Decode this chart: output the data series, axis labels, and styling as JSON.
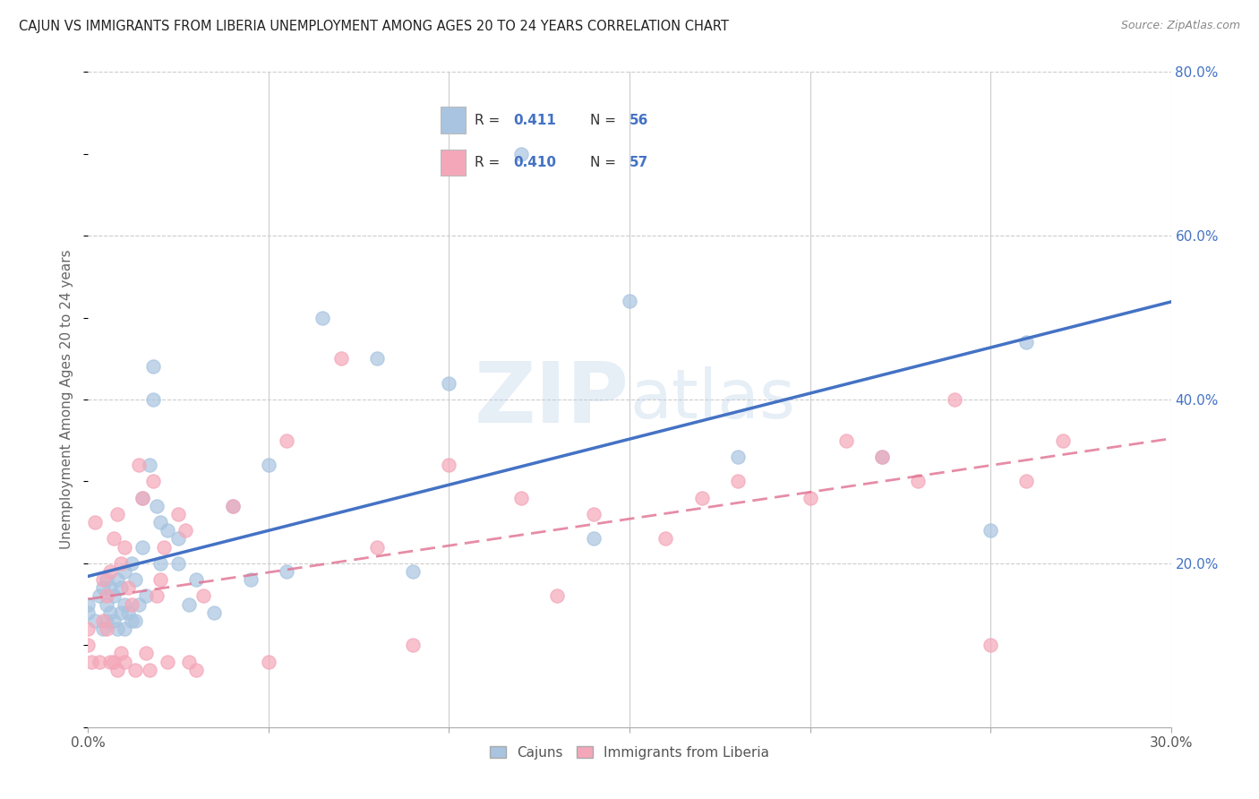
{
  "title": "CAJUN VS IMMIGRANTS FROM LIBERIA UNEMPLOYMENT AMONG AGES 20 TO 24 YEARS CORRELATION CHART",
  "source": "Source: ZipAtlas.com",
  "ylabel": "Unemployment Among Ages 20 to 24 years",
  "xmin": 0.0,
  "xmax": 0.3,
  "ymin": 0.0,
  "ymax": 0.8,
  "cajun_R": 0.411,
  "cajun_N": 56,
  "liberia_R": 0.41,
  "liberia_N": 57,
  "cajun_color": "#a8c4e0",
  "liberia_color": "#f4a7b9",
  "cajun_line_color": "#4472c4",
  "liberia_line_color": "#e07090",
  "watermark": "ZIPatlas",
  "cajun_scatter_x": [
    0.0,
    0.0,
    0.002,
    0.003,
    0.004,
    0.004,
    0.005,
    0.005,
    0.005,
    0.006,
    0.006,
    0.007,
    0.007,
    0.008,
    0.008,
    0.009,
    0.009,
    0.01,
    0.01,
    0.01,
    0.011,
    0.012,
    0.012,
    0.013,
    0.013,
    0.014,
    0.015,
    0.015,
    0.016,
    0.017,
    0.018,
    0.018,
    0.019,
    0.02,
    0.02,
    0.022,
    0.025,
    0.025,
    0.028,
    0.03,
    0.035,
    0.04,
    0.045,
    0.05,
    0.055,
    0.065,
    0.08,
    0.09,
    0.1,
    0.12,
    0.14,
    0.15,
    0.18,
    0.22,
    0.25,
    0.26
  ],
  "cajun_scatter_y": [
    0.14,
    0.15,
    0.13,
    0.16,
    0.12,
    0.17,
    0.13,
    0.15,
    0.18,
    0.14,
    0.17,
    0.13,
    0.16,
    0.12,
    0.18,
    0.14,
    0.17,
    0.12,
    0.15,
    0.19,
    0.14,
    0.13,
    0.2,
    0.13,
    0.18,
    0.15,
    0.22,
    0.28,
    0.16,
    0.32,
    0.4,
    0.44,
    0.27,
    0.2,
    0.25,
    0.24,
    0.2,
    0.23,
    0.15,
    0.18,
    0.14,
    0.27,
    0.18,
    0.32,
    0.19,
    0.5,
    0.45,
    0.19,
    0.42,
    0.7,
    0.23,
    0.52,
    0.33,
    0.33,
    0.24,
    0.47
  ],
  "liberia_scatter_x": [
    0.0,
    0.0,
    0.001,
    0.002,
    0.003,
    0.004,
    0.004,
    0.005,
    0.005,
    0.006,
    0.006,
    0.007,
    0.007,
    0.008,
    0.008,
    0.009,
    0.009,
    0.01,
    0.01,
    0.011,
    0.012,
    0.013,
    0.014,
    0.015,
    0.016,
    0.017,
    0.018,
    0.019,
    0.02,
    0.021,
    0.022,
    0.025,
    0.027,
    0.028,
    0.03,
    0.032,
    0.04,
    0.05,
    0.055,
    0.07,
    0.08,
    0.09,
    0.1,
    0.12,
    0.13,
    0.14,
    0.16,
    0.17,
    0.18,
    0.2,
    0.21,
    0.22,
    0.23,
    0.24,
    0.25,
    0.26,
    0.27
  ],
  "liberia_scatter_y": [
    0.1,
    0.12,
    0.08,
    0.25,
    0.08,
    0.13,
    0.18,
    0.12,
    0.16,
    0.08,
    0.19,
    0.08,
    0.23,
    0.07,
    0.26,
    0.09,
    0.2,
    0.08,
    0.22,
    0.17,
    0.15,
    0.07,
    0.32,
    0.28,
    0.09,
    0.07,
    0.3,
    0.16,
    0.18,
    0.22,
    0.08,
    0.26,
    0.24,
    0.08,
    0.07,
    0.16,
    0.27,
    0.08,
    0.35,
    0.45,
    0.22,
    0.1,
    0.32,
    0.28,
    0.16,
    0.26,
    0.23,
    0.28,
    0.3,
    0.28,
    0.35,
    0.33,
    0.3,
    0.4,
    0.1,
    0.3,
    0.35
  ]
}
